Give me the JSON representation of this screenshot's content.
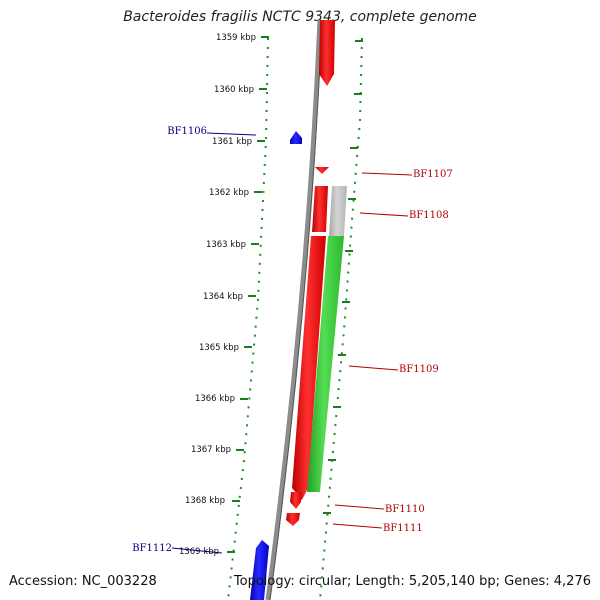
{
  "title": "Bacteroides fragilis NCTC 9343, complete genome",
  "footer": {
    "accession": "Accession: NC_003228",
    "topology": "Topology: circular; Length: 5,205,140 bp; Genes: 4,276"
  },
  "ticks": [
    "1359 kbp",
    "1360 kbp",
    "1361 kbp",
    "1362 kbp",
    "1363 kbp",
    "1364 kbp",
    "1365 kbp",
    "1366 kbp",
    "1367 kbp",
    "1368 kbp",
    "1369 kbp"
  ],
  "gene_labels": [
    {
      "name": "BF1106",
      "color": "#000080"
    },
    {
      "name": "BF1107",
      "color": "#b00000"
    },
    {
      "name": "BF1108",
      "color": "#b00000"
    },
    {
      "name": "BF1109",
      "color": "#b00000"
    },
    {
      "name": "BF1110",
      "color": "#b00000"
    },
    {
      "name": "BF1111",
      "color": "#b00000"
    },
    {
      "name": "BF1112",
      "color": "#000080"
    }
  ],
  "colors": {
    "forward_gene": "#ff0000",
    "reverse_gene": "#0000ff",
    "cds_green": "#33cc33",
    "cds_grey": "#c0c0c0",
    "backbone": "#888888",
    "gc_dots": "#228b22"
  }
}
